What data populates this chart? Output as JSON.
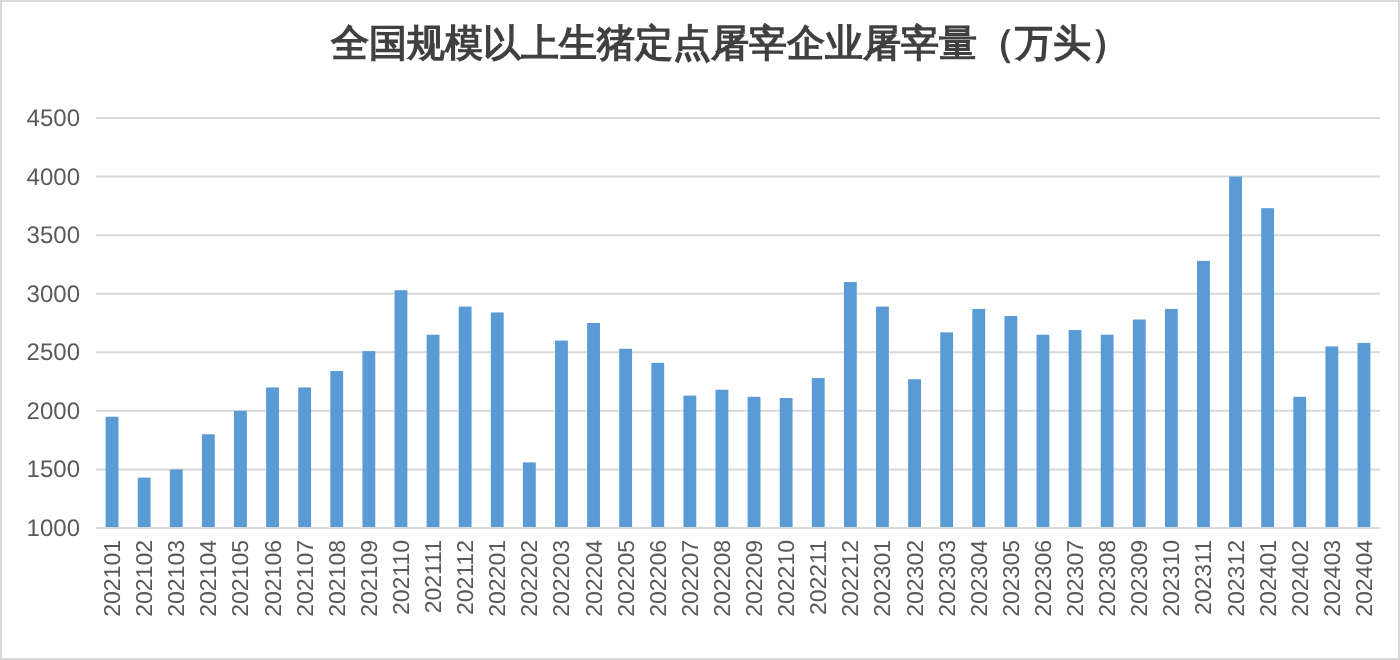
{
  "chart_data": {
    "type": "bar",
    "title": "全国规模以上生猪定点屠宰企业屠宰量（万头）",
    "categories": [
      "202101",
      "202102",
      "202103",
      "202104",
      "202105",
      "202106",
      "202107",
      "202108",
      "202109",
      "202110",
      "202111",
      "202112",
      "202201",
      "202202",
      "202203",
      "202204",
      "202205",
      "202206",
      "202207",
      "202208",
      "202209",
      "202210",
      "202211",
      "202212",
      "202301",
      "202302",
      "202303",
      "202304",
      "202305",
      "202306",
      "202307",
      "202308",
      "202309",
      "202310",
      "202311",
      "202312",
      "202401",
      "202402",
      "202403",
      "202404"
    ],
    "values": [
      1950,
      1430,
      1500,
      1800,
      2000,
      2200,
      2200,
      2340,
      2510,
      3030,
      2650,
      2890,
      2840,
      1560,
      2600,
      2750,
      2530,
      2410,
      2130,
      2180,
      2120,
      2110,
      2280,
      3100,
      2890,
      2270,
      2670,
      2870,
      2810,
      2650,
      2690,
      2650,
      2780,
      2870,
      3280,
      4000,
      3730,
      2120,
      2550,
      2580
    ],
    "color": "#5b9bd5",
    "ylim": [
      1000,
      4500
    ],
    "yticks": [
      1000,
      1500,
      2000,
      2500,
      3000,
      3500,
      4000,
      4500
    ],
    "grid": "y"
  }
}
